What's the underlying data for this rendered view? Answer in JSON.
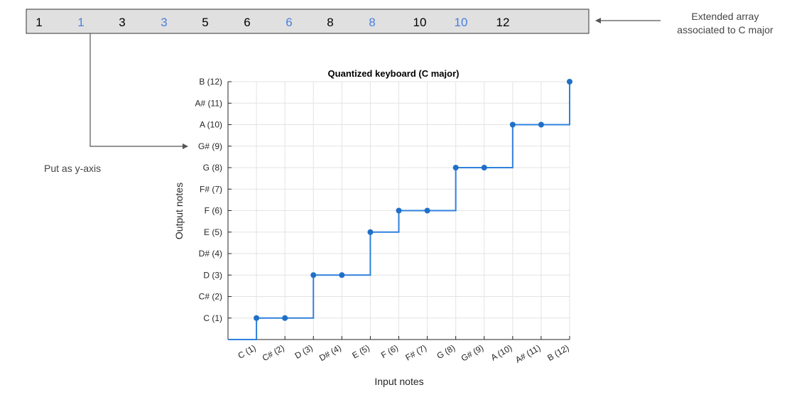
{
  "array_box": {
    "values": [
      "1",
      "1",
      "3",
      "3",
      "5",
      "6",
      "6",
      "8",
      "8",
      "10",
      "10",
      "12"
    ],
    "colors": [
      "#000000",
      "#4a7fdc",
      "#000000",
      "#4a7fdc",
      "#000000",
      "#000000",
      "#4a7fdc",
      "#000000",
      "#4a7fdc",
      "#000000",
      "#4a7fdc",
      "#000000"
    ],
    "fill": "#e0e0e0"
  },
  "annotations": {
    "extended_line1": "Extended array",
    "extended_line2": "associated to C major",
    "put_as": "Put as y-axis"
  },
  "chart_data": {
    "type": "line",
    "step": true,
    "title": "Quantized keyboard (C major)",
    "xlabel": "Input notes",
    "ylabel": "Output notes",
    "x_ticks": [
      "C (1)",
      "C# (2)",
      "D (3)",
      "D# (4)",
      "E (5)",
      "F (6)",
      "F# (7)",
      "G (8)",
      "G# (9)",
      "A (10)",
      "A# (11)",
      "B (12)"
    ],
    "y_ticks": [
      "C (1)",
      "C# (2)",
      "D (3)",
      "D# (4)",
      "E (5)",
      "F (6)",
      "F# (7)",
      "G (8)",
      "G# (9)",
      "A (10)",
      "A# (11)",
      "B (12)"
    ],
    "x": [
      1,
      2,
      3,
      4,
      5,
      6,
      7,
      8,
      9,
      10,
      11,
      12
    ],
    "y": [
      1,
      1,
      3,
      3,
      5,
      6,
      6,
      8,
      8,
      10,
      10,
      12
    ],
    "xlim": [
      0,
      12
    ],
    "ylim": [
      0,
      12
    ],
    "grid": true,
    "line_color": "#2f80dc",
    "marker_color": "#1f6fc7"
  }
}
